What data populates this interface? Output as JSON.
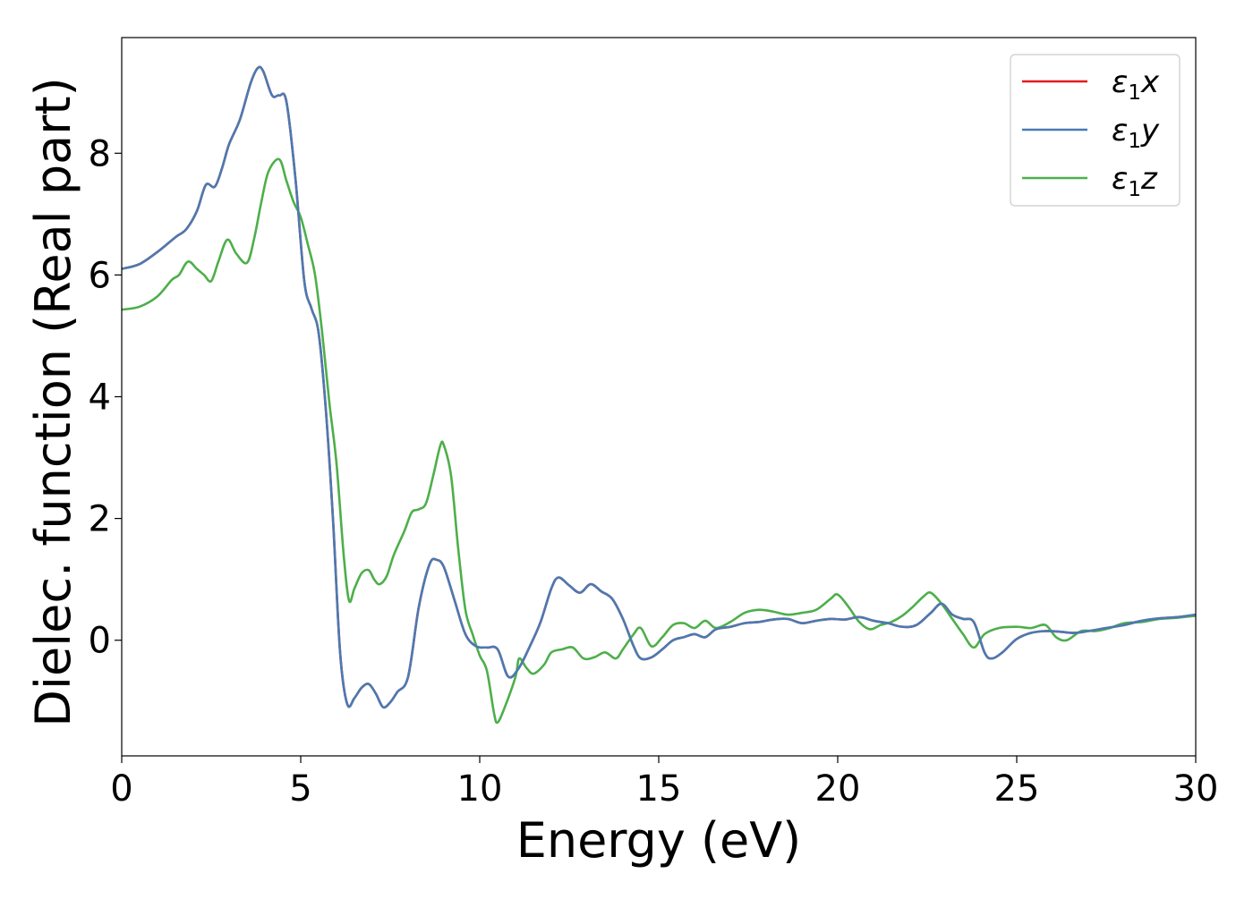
{
  "chart_data": {
    "type": "line",
    "xlabel": "Energy (eV)",
    "ylabel": "Dielec. function (Real part)",
    "xlim": [
      0,
      30
    ],
    "ylim": [
      -1.9,
      9.9
    ],
    "xticks": [
      0,
      5,
      10,
      15,
      20,
      25,
      30
    ],
    "xtick_labels": [
      "0",
      "5",
      "10",
      "15",
      "20",
      "25",
      "30"
    ],
    "yticks": [
      0,
      2,
      4,
      6,
      8
    ],
    "ytick_labels": [
      "0",
      "2",
      "4",
      "6",
      "8"
    ],
    "grid": false,
    "legend_position": "top-right",
    "series": [
      {
        "name": "ε1x",
        "legend_base": "ε",
        "legend_sub": "1",
        "legend_var": "x",
        "color": "#e41a1c",
        "points": [
          [
            0,
            6.1
          ],
          [
            0.5,
            6.18
          ],
          [
            1,
            6.38
          ],
          [
            1.5,
            6.62
          ],
          [
            1.8,
            6.75
          ],
          [
            2.1,
            7.05
          ],
          [
            2.35,
            7.48
          ],
          [
            2.6,
            7.45
          ],
          [
            2.8,
            7.75
          ],
          [
            3.0,
            8.15
          ],
          [
            3.3,
            8.55
          ],
          [
            3.6,
            9.15
          ],
          [
            3.8,
            9.4
          ],
          [
            3.95,
            9.35
          ],
          [
            4.2,
            8.95
          ],
          [
            4.4,
            8.95
          ],
          [
            4.6,
            8.85
          ],
          [
            4.85,
            7.6
          ],
          [
            5.1,
            5.9
          ],
          [
            5.3,
            5.45
          ],
          [
            5.5,
            5.05
          ],
          [
            5.7,
            3.8
          ],
          [
            5.9,
            2.0
          ],
          [
            6.1,
            -0.2
          ],
          [
            6.3,
            -1.05
          ],
          [
            6.5,
            -0.95
          ],
          [
            6.7,
            -0.78
          ],
          [
            6.9,
            -0.72
          ],
          [
            7.1,
            -0.88
          ],
          [
            7.3,
            -1.1
          ],
          [
            7.5,
            -1.02
          ],
          [
            7.7,
            -0.85
          ],
          [
            8.0,
            -0.6
          ],
          [
            8.3,
            0.55
          ],
          [
            8.6,
            1.25
          ],
          [
            8.8,
            1.32
          ],
          [
            9.0,
            1.2
          ],
          [
            9.3,
            0.65
          ],
          [
            9.6,
            0.1
          ],
          [
            9.9,
            -0.1
          ],
          [
            10.2,
            -0.12
          ],
          [
            10.5,
            -0.15
          ],
          [
            10.8,
            -0.6
          ],
          [
            11.1,
            -0.45
          ],
          [
            11.4,
            -0.1
          ],
          [
            11.7,
            0.3
          ],
          [
            12.0,
            0.85
          ],
          [
            12.2,
            1.03
          ],
          [
            12.5,
            0.9
          ],
          [
            12.8,
            0.78
          ],
          [
            13.1,
            0.92
          ],
          [
            13.4,
            0.8
          ],
          [
            13.7,
            0.68
          ],
          [
            14.0,
            0.35
          ],
          [
            14.3,
            -0.1
          ],
          [
            14.5,
            -0.3
          ],
          [
            14.8,
            -0.28
          ],
          [
            15.1,
            -0.15
          ],
          [
            15.4,
            0.0
          ],
          [
            15.7,
            0.05
          ],
          [
            16.0,
            0.1
          ],
          [
            16.3,
            0.05
          ],
          [
            16.6,
            0.18
          ],
          [
            17.0,
            0.22
          ],
          [
            17.4,
            0.28
          ],
          [
            17.8,
            0.3
          ],
          [
            18.2,
            0.34
          ],
          [
            18.6,
            0.35
          ],
          [
            19.0,
            0.28
          ],
          [
            19.4,
            0.32
          ],
          [
            19.8,
            0.35
          ],
          [
            20.2,
            0.34
          ],
          [
            20.6,
            0.38
          ],
          [
            21.0,
            0.32
          ],
          [
            21.4,
            0.28
          ],
          [
            21.8,
            0.22
          ],
          [
            22.2,
            0.25
          ],
          [
            22.6,
            0.45
          ],
          [
            22.9,
            0.6
          ],
          [
            23.2,
            0.42
          ],
          [
            23.5,
            0.35
          ],
          [
            23.8,
            0.3
          ],
          [
            24.1,
            -0.2
          ],
          [
            24.3,
            -0.3
          ],
          [
            24.6,
            -0.2
          ],
          [
            25.0,
            0.02
          ],
          [
            25.4,
            0.12
          ],
          [
            25.8,
            0.15
          ],
          [
            26.2,
            0.14
          ],
          [
            26.6,
            0.12
          ],
          [
            27.0,
            0.15
          ],
          [
            27.5,
            0.2
          ],
          [
            28.0,
            0.25
          ],
          [
            28.5,
            0.32
          ],
          [
            29.0,
            0.36
          ],
          [
            29.5,
            0.38
          ],
          [
            30.0,
            0.42
          ]
        ]
      },
      {
        "name": "ε1y",
        "legend_base": "ε",
        "legend_sub": "1",
        "legend_var": "y",
        "color": "#4a7ab2",
        "points": [
          [
            0,
            6.1
          ],
          [
            0.5,
            6.18
          ],
          [
            1,
            6.38
          ],
          [
            1.5,
            6.62
          ],
          [
            1.8,
            6.75
          ],
          [
            2.1,
            7.05
          ],
          [
            2.35,
            7.48
          ],
          [
            2.6,
            7.45
          ],
          [
            2.8,
            7.75
          ],
          [
            3.0,
            8.15
          ],
          [
            3.3,
            8.55
          ],
          [
            3.6,
            9.15
          ],
          [
            3.8,
            9.4
          ],
          [
            3.95,
            9.35
          ],
          [
            4.2,
            8.95
          ],
          [
            4.4,
            8.95
          ],
          [
            4.6,
            8.85
          ],
          [
            4.85,
            7.6
          ],
          [
            5.1,
            5.9
          ],
          [
            5.3,
            5.45
          ],
          [
            5.5,
            5.05
          ],
          [
            5.7,
            3.8
          ],
          [
            5.9,
            2.0
          ],
          [
            6.1,
            -0.2
          ],
          [
            6.3,
            -1.05
          ],
          [
            6.5,
            -0.95
          ],
          [
            6.7,
            -0.78
          ],
          [
            6.9,
            -0.72
          ],
          [
            7.1,
            -0.88
          ],
          [
            7.3,
            -1.1
          ],
          [
            7.5,
            -1.02
          ],
          [
            7.7,
            -0.85
          ],
          [
            8.0,
            -0.6
          ],
          [
            8.3,
            0.55
          ],
          [
            8.6,
            1.25
          ],
          [
            8.8,
            1.32
          ],
          [
            9.0,
            1.2
          ],
          [
            9.3,
            0.65
          ],
          [
            9.6,
            0.1
          ],
          [
            9.9,
            -0.1
          ],
          [
            10.2,
            -0.12
          ],
          [
            10.5,
            -0.15
          ],
          [
            10.8,
            -0.6
          ],
          [
            11.1,
            -0.45
          ],
          [
            11.4,
            -0.1
          ],
          [
            11.7,
            0.3
          ],
          [
            12.0,
            0.85
          ],
          [
            12.2,
            1.03
          ],
          [
            12.5,
            0.9
          ],
          [
            12.8,
            0.78
          ],
          [
            13.1,
            0.92
          ],
          [
            13.4,
            0.8
          ],
          [
            13.7,
            0.68
          ],
          [
            14.0,
            0.35
          ],
          [
            14.3,
            -0.1
          ],
          [
            14.5,
            -0.3
          ],
          [
            14.8,
            -0.28
          ],
          [
            15.1,
            -0.15
          ],
          [
            15.4,
            0.0
          ],
          [
            15.7,
            0.05
          ],
          [
            16.0,
            0.1
          ],
          [
            16.3,
            0.05
          ],
          [
            16.6,
            0.18
          ],
          [
            17.0,
            0.22
          ],
          [
            17.4,
            0.28
          ],
          [
            17.8,
            0.3
          ],
          [
            18.2,
            0.34
          ],
          [
            18.6,
            0.35
          ],
          [
            19.0,
            0.28
          ],
          [
            19.4,
            0.32
          ],
          [
            19.8,
            0.35
          ],
          [
            20.2,
            0.34
          ],
          [
            20.6,
            0.38
          ],
          [
            21.0,
            0.32
          ],
          [
            21.4,
            0.28
          ],
          [
            21.8,
            0.22
          ],
          [
            22.2,
            0.25
          ],
          [
            22.6,
            0.45
          ],
          [
            22.9,
            0.6
          ],
          [
            23.2,
            0.42
          ],
          [
            23.5,
            0.35
          ],
          [
            23.8,
            0.3
          ],
          [
            24.1,
            -0.2
          ],
          [
            24.3,
            -0.3
          ],
          [
            24.6,
            -0.2
          ],
          [
            25.0,
            0.02
          ],
          [
            25.4,
            0.12
          ],
          [
            25.8,
            0.15
          ],
          [
            26.2,
            0.14
          ],
          [
            26.6,
            0.12
          ],
          [
            27.0,
            0.15
          ],
          [
            27.5,
            0.2
          ],
          [
            28.0,
            0.25
          ],
          [
            28.5,
            0.32
          ],
          [
            29.0,
            0.36
          ],
          [
            29.5,
            0.38
          ],
          [
            30.0,
            0.42
          ]
        ]
      },
      {
        "name": "ε1z",
        "legend_base": "ε",
        "legend_sub": "1",
        "legend_var": "z",
        "color": "#4daf4a",
        "points": [
          [
            0,
            5.43
          ],
          [
            0.5,
            5.48
          ],
          [
            1,
            5.65
          ],
          [
            1.4,
            5.92
          ],
          [
            1.6,
            6.0
          ],
          [
            1.85,
            6.22
          ],
          [
            2.1,
            6.1
          ],
          [
            2.3,
            6.0
          ],
          [
            2.5,
            5.9
          ],
          [
            2.7,
            6.22
          ],
          [
            2.95,
            6.58
          ],
          [
            3.2,
            6.35
          ],
          [
            3.5,
            6.2
          ],
          [
            3.7,
            6.6
          ],
          [
            3.9,
            7.2
          ],
          [
            4.1,
            7.7
          ],
          [
            4.4,
            7.9
          ],
          [
            4.6,
            7.55
          ],
          [
            4.8,
            7.2
          ],
          [
            5.0,
            6.95
          ],
          [
            5.2,
            6.5
          ],
          [
            5.4,
            6.0
          ],
          [
            5.6,
            5.05
          ],
          [
            5.8,
            3.9
          ],
          [
            6.0,
            2.9
          ],
          [
            6.2,
            1.4
          ],
          [
            6.35,
            0.65
          ],
          [
            6.5,
            0.85
          ],
          [
            6.7,
            1.1
          ],
          [
            6.9,
            1.15
          ],
          [
            7.05,
            1.0
          ],
          [
            7.2,
            0.92
          ],
          [
            7.4,
            1.05
          ],
          [
            7.6,
            1.4
          ],
          [
            7.9,
            1.8
          ],
          [
            8.1,
            2.1
          ],
          [
            8.3,
            2.15
          ],
          [
            8.5,
            2.25
          ],
          [
            8.7,
            2.7
          ],
          [
            8.9,
            3.2
          ],
          [
            9.0,
            3.2
          ],
          [
            9.2,
            2.7
          ],
          [
            9.4,
            1.5
          ],
          [
            9.6,
            0.5
          ],
          [
            9.8,
            0.1
          ],
          [
            10.0,
            -0.25
          ],
          [
            10.2,
            -0.5
          ],
          [
            10.4,
            -1.2
          ],
          [
            10.5,
            -1.35
          ],
          [
            10.7,
            -1.1
          ],
          [
            11.0,
            -0.6
          ],
          [
            11.1,
            -0.3
          ],
          [
            11.3,
            -0.45
          ],
          [
            11.5,
            -0.55
          ],
          [
            11.8,
            -0.4
          ],
          [
            12.0,
            -0.2
          ],
          [
            12.3,
            -0.15
          ],
          [
            12.6,
            -0.12
          ],
          [
            12.9,
            -0.3
          ],
          [
            13.2,
            -0.28
          ],
          [
            13.5,
            -0.2
          ],
          [
            13.8,
            -0.3
          ],
          [
            14.0,
            -0.15
          ],
          [
            14.3,
            0.1
          ],
          [
            14.5,
            0.2
          ],
          [
            14.8,
            -0.1
          ],
          [
            15.1,
            0.05
          ],
          [
            15.4,
            0.25
          ],
          [
            15.7,
            0.28
          ],
          [
            16.0,
            0.2
          ],
          [
            16.3,
            0.32
          ],
          [
            16.6,
            0.2
          ],
          [
            17.0,
            0.3
          ],
          [
            17.4,
            0.45
          ],
          [
            17.8,
            0.5
          ],
          [
            18.2,
            0.47
          ],
          [
            18.6,
            0.42
          ],
          [
            19.0,
            0.45
          ],
          [
            19.4,
            0.5
          ],
          [
            19.8,
            0.68
          ],
          [
            20.0,
            0.75
          ],
          [
            20.3,
            0.55
          ],
          [
            20.6,
            0.3
          ],
          [
            20.9,
            0.18
          ],
          [
            21.2,
            0.25
          ],
          [
            21.5,
            0.3
          ],
          [
            21.8,
            0.4
          ],
          [
            22.1,
            0.55
          ],
          [
            22.4,
            0.72
          ],
          [
            22.6,
            0.78
          ],
          [
            22.9,
            0.6
          ],
          [
            23.2,
            0.35
          ],
          [
            23.5,
            0.1
          ],
          [
            23.8,
            -0.12
          ],
          [
            24.1,
            0.1
          ],
          [
            24.5,
            0.2
          ],
          [
            25.0,
            0.22
          ],
          [
            25.4,
            0.2
          ],
          [
            25.8,
            0.25
          ],
          [
            26.1,
            0.05
          ],
          [
            26.4,
            0.0
          ],
          [
            26.8,
            0.15
          ],
          [
            27.2,
            0.15
          ],
          [
            27.6,
            0.2
          ],
          [
            28.0,
            0.28
          ],
          [
            28.5,
            0.3
          ],
          [
            29.0,
            0.35
          ],
          [
            29.5,
            0.37
          ],
          [
            30.0,
            0.4
          ]
        ]
      }
    ]
  }
}
